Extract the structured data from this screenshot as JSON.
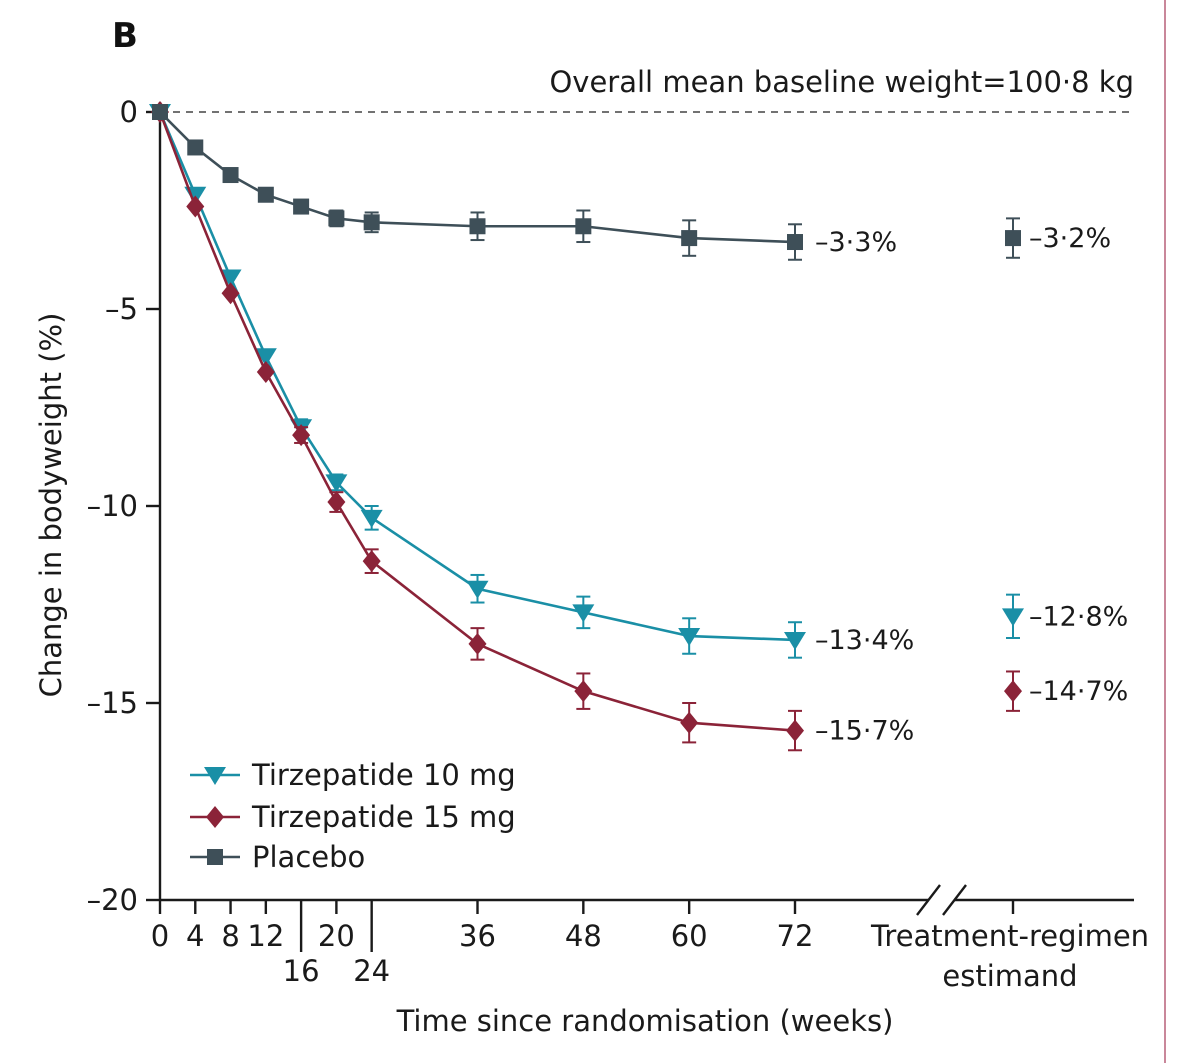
{
  "panel_label": "B",
  "chart_data": {
    "type": "line",
    "annotation": "Overall mean baseline weight=100·8 kg",
    "xlabel": "Time since randomisation (weeks)",
    "ylabel": "Change in bodyweight (%)",
    "ylim": [
      -20,
      0
    ],
    "yticks": [
      0,
      -5,
      -10,
      -15,
      -20
    ],
    "ytick_labels": [
      "0",
      "–5",
      "–10",
      "–15",
      "–20"
    ],
    "xticks": [
      0,
      4,
      8,
      12,
      16,
      20,
      24,
      36,
      48,
      60,
      72
    ],
    "xtick_labels": [
      "0",
      "4",
      "8",
      "12",
      "16",
      "20",
      "24",
      "36",
      "48",
      "60",
      "72"
    ],
    "extra_category_label": [
      "Treatment-regimen",
      "estimand"
    ],
    "reference_line": 0,
    "series": [
      {
        "name": "Tirzepatide 10 mg",
        "color": "#1a8fa6",
        "marker": "triangle-down",
        "x": [
          0,
          4,
          8,
          12,
          16,
          20,
          24,
          36,
          48,
          60,
          72
        ],
        "values": [
          0,
          -2.1,
          -4.2,
          -6.2,
          -8.0,
          -9.4,
          -10.3,
          -12.1,
          -12.7,
          -13.3,
          -13.4
        ],
        "errors": [
          0,
          0,
          0,
          0,
          0.2,
          0.2,
          0.3,
          0.35,
          0.4,
          0.45,
          0.45
        ],
        "end_label": "–13·4%",
        "estimand_value": -12.8,
        "estimand_error": 0.55,
        "estimand_label": "–12·8%"
      },
      {
        "name": "Tirzepatide 15 mg",
        "color": "#8b2338",
        "marker": "diamond",
        "x": [
          0,
          4,
          8,
          12,
          16,
          20,
          24,
          36,
          48,
          60,
          72
        ],
        "values": [
          0,
          -2.4,
          -4.6,
          -6.6,
          -8.2,
          -9.9,
          -11.4,
          -13.5,
          -14.7,
          -15.5,
          -15.7
        ],
        "errors": [
          0,
          0,
          0,
          0,
          0.2,
          0.25,
          0.3,
          0.4,
          0.45,
          0.5,
          0.5
        ],
        "end_label": "–15·7%",
        "estimand_value": -14.7,
        "estimand_error": 0.5,
        "estimand_label": "–14·7%"
      },
      {
        "name": "Placebo",
        "color": "#3e4f58",
        "marker": "square",
        "x": [
          0,
          4,
          8,
          12,
          16,
          20,
          24,
          36,
          48,
          60,
          72
        ],
        "values": [
          0,
          -0.9,
          -1.6,
          -2.1,
          -2.4,
          -2.7,
          -2.8,
          -2.9,
          -2.9,
          -3.2,
          -3.3
        ],
        "errors": [
          0,
          0,
          0,
          0,
          0.15,
          0.2,
          0.25,
          0.35,
          0.4,
          0.45,
          0.45
        ],
        "end_label": "–3·3%",
        "estimand_value": -3.2,
        "estimand_error": 0.5,
        "estimand_label": "–3·2%"
      }
    ]
  }
}
